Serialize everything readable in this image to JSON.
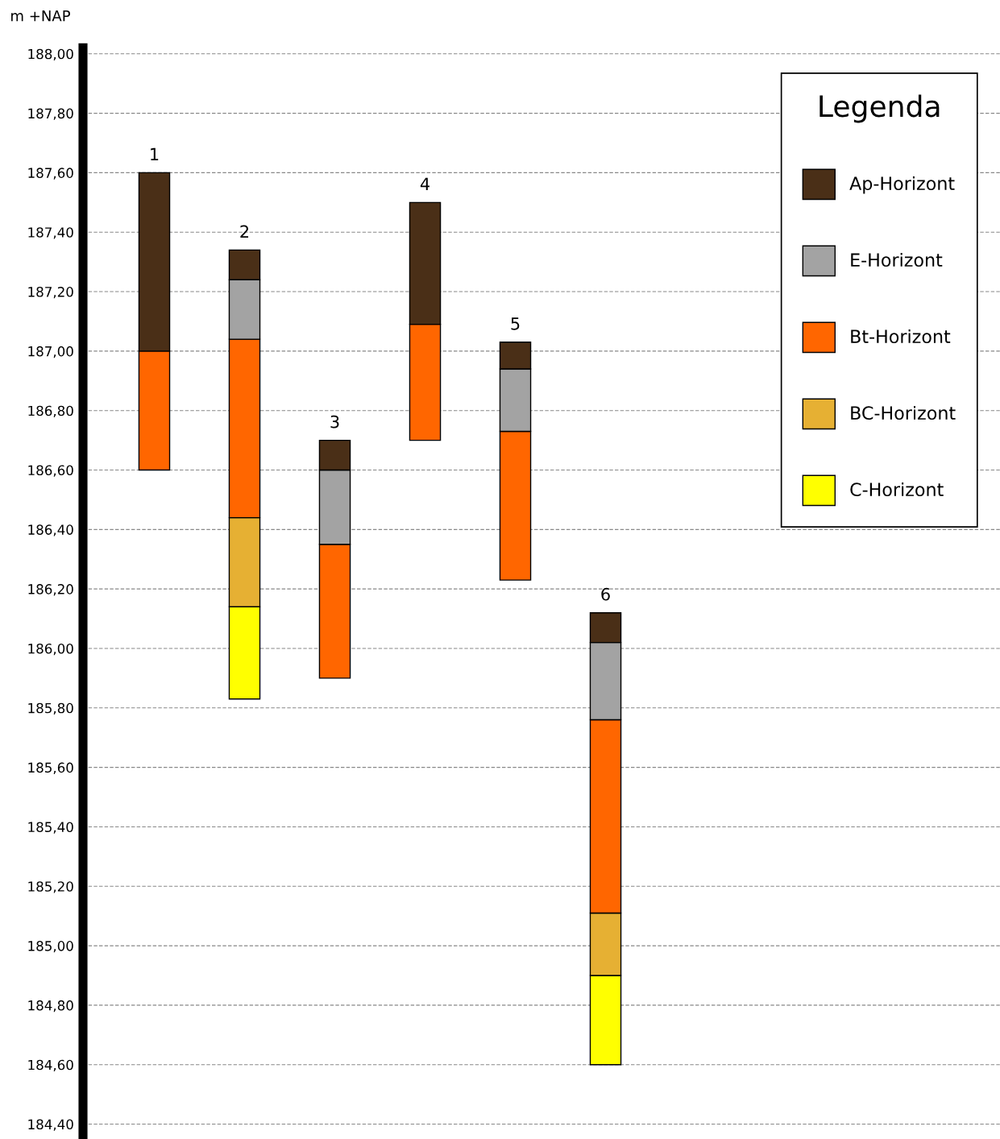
{
  "chart_data": {
    "type": "bar",
    "stacked": true,
    "ylabel": "m +NAP",
    "legend_title": "Legenda",
    "legend": "top right",
    "grid": "y",
    "tick_labels": "y",
    "categories": [
      null,
      null,
      null,
      null,
      null,
      null
    ],
    "annotations": [
      "1",
      "2",
      "3",
      "4",
      "5",
      "6"
    ],
    "series": [
      {
        "name": "C-Horizont",
        "color": "#ffff00",
        "base": [
          null,
          185.83,
          null,
          null,
          null,
          184.6
        ],
        "values": [
          null,
          0.31,
          null,
          null,
          null,
          0.3
        ]
      },
      {
        "name": "BC-Horizont",
        "color": "#e6b033",
        "base": [
          null,
          186.14,
          null,
          null,
          null,
          184.9
        ],
        "values": [
          null,
          0.3,
          null,
          null,
          null,
          0.21
        ]
      },
      {
        "name": "Bt-Horizont",
        "color": "#ff6600",
        "base": [
          186.6,
          186.44,
          185.9,
          186.7,
          186.23,
          185.11
        ],
        "values": [
          0.4,
          0.6,
          0.45,
          0.39,
          0.5,
          0.65
        ]
      },
      {
        "name": "E-Horizont",
        "color": "#a3a3a3",
        "base": [
          null,
          187.04,
          186.35,
          null,
          186.73,
          185.76
        ],
        "values": [
          null,
          0.2,
          0.25,
          null,
          0.21,
          0.26
        ]
      },
      {
        "name": "Ap-Horizont",
        "color": "#4a2f17",
        "base": [
          187.0,
          187.24,
          186.6,
          187.09,
          186.94,
          186.02
        ],
        "values": [
          0.6,
          0.1,
          0.1,
          0.41,
          0.09,
          0.1
        ]
      }
    ],
    "ylim": [
      184.35,
      188.02
    ],
    "yticks": [
      {
        "value": 184.4,
        "label": "184,40"
      },
      {
        "value": 184.6,
        "label": "184,60"
      },
      {
        "value": 184.8,
        "label": "184,80"
      },
      {
        "value": 185.0,
        "label": "185,00"
      },
      {
        "value": 185.2,
        "label": "185,20"
      },
      {
        "value": 185.4,
        "label": "185,40"
      },
      {
        "value": 185.6,
        "label": "185,60"
      },
      {
        "value": 185.8,
        "label": "185,80"
      },
      {
        "value": 186.0,
        "label": "186,00"
      },
      {
        "value": 186.2,
        "label": "186,20"
      },
      {
        "value": 186.4,
        "label": "186,40"
      },
      {
        "value": 186.6,
        "label": "186,60"
      },
      {
        "value": 186.8,
        "label": "186,80"
      },
      {
        "value": 187.0,
        "label": "187,00"
      },
      {
        "value": 187.2,
        "label": "187,20"
      },
      {
        "value": 187.4,
        "label": "187,40"
      },
      {
        "value": 187.6,
        "label": "187,60"
      },
      {
        "value": 187.8,
        "label": "187,80"
      },
      {
        "value": 188.0,
        "label": "188,00"
      }
    ]
  }
}
